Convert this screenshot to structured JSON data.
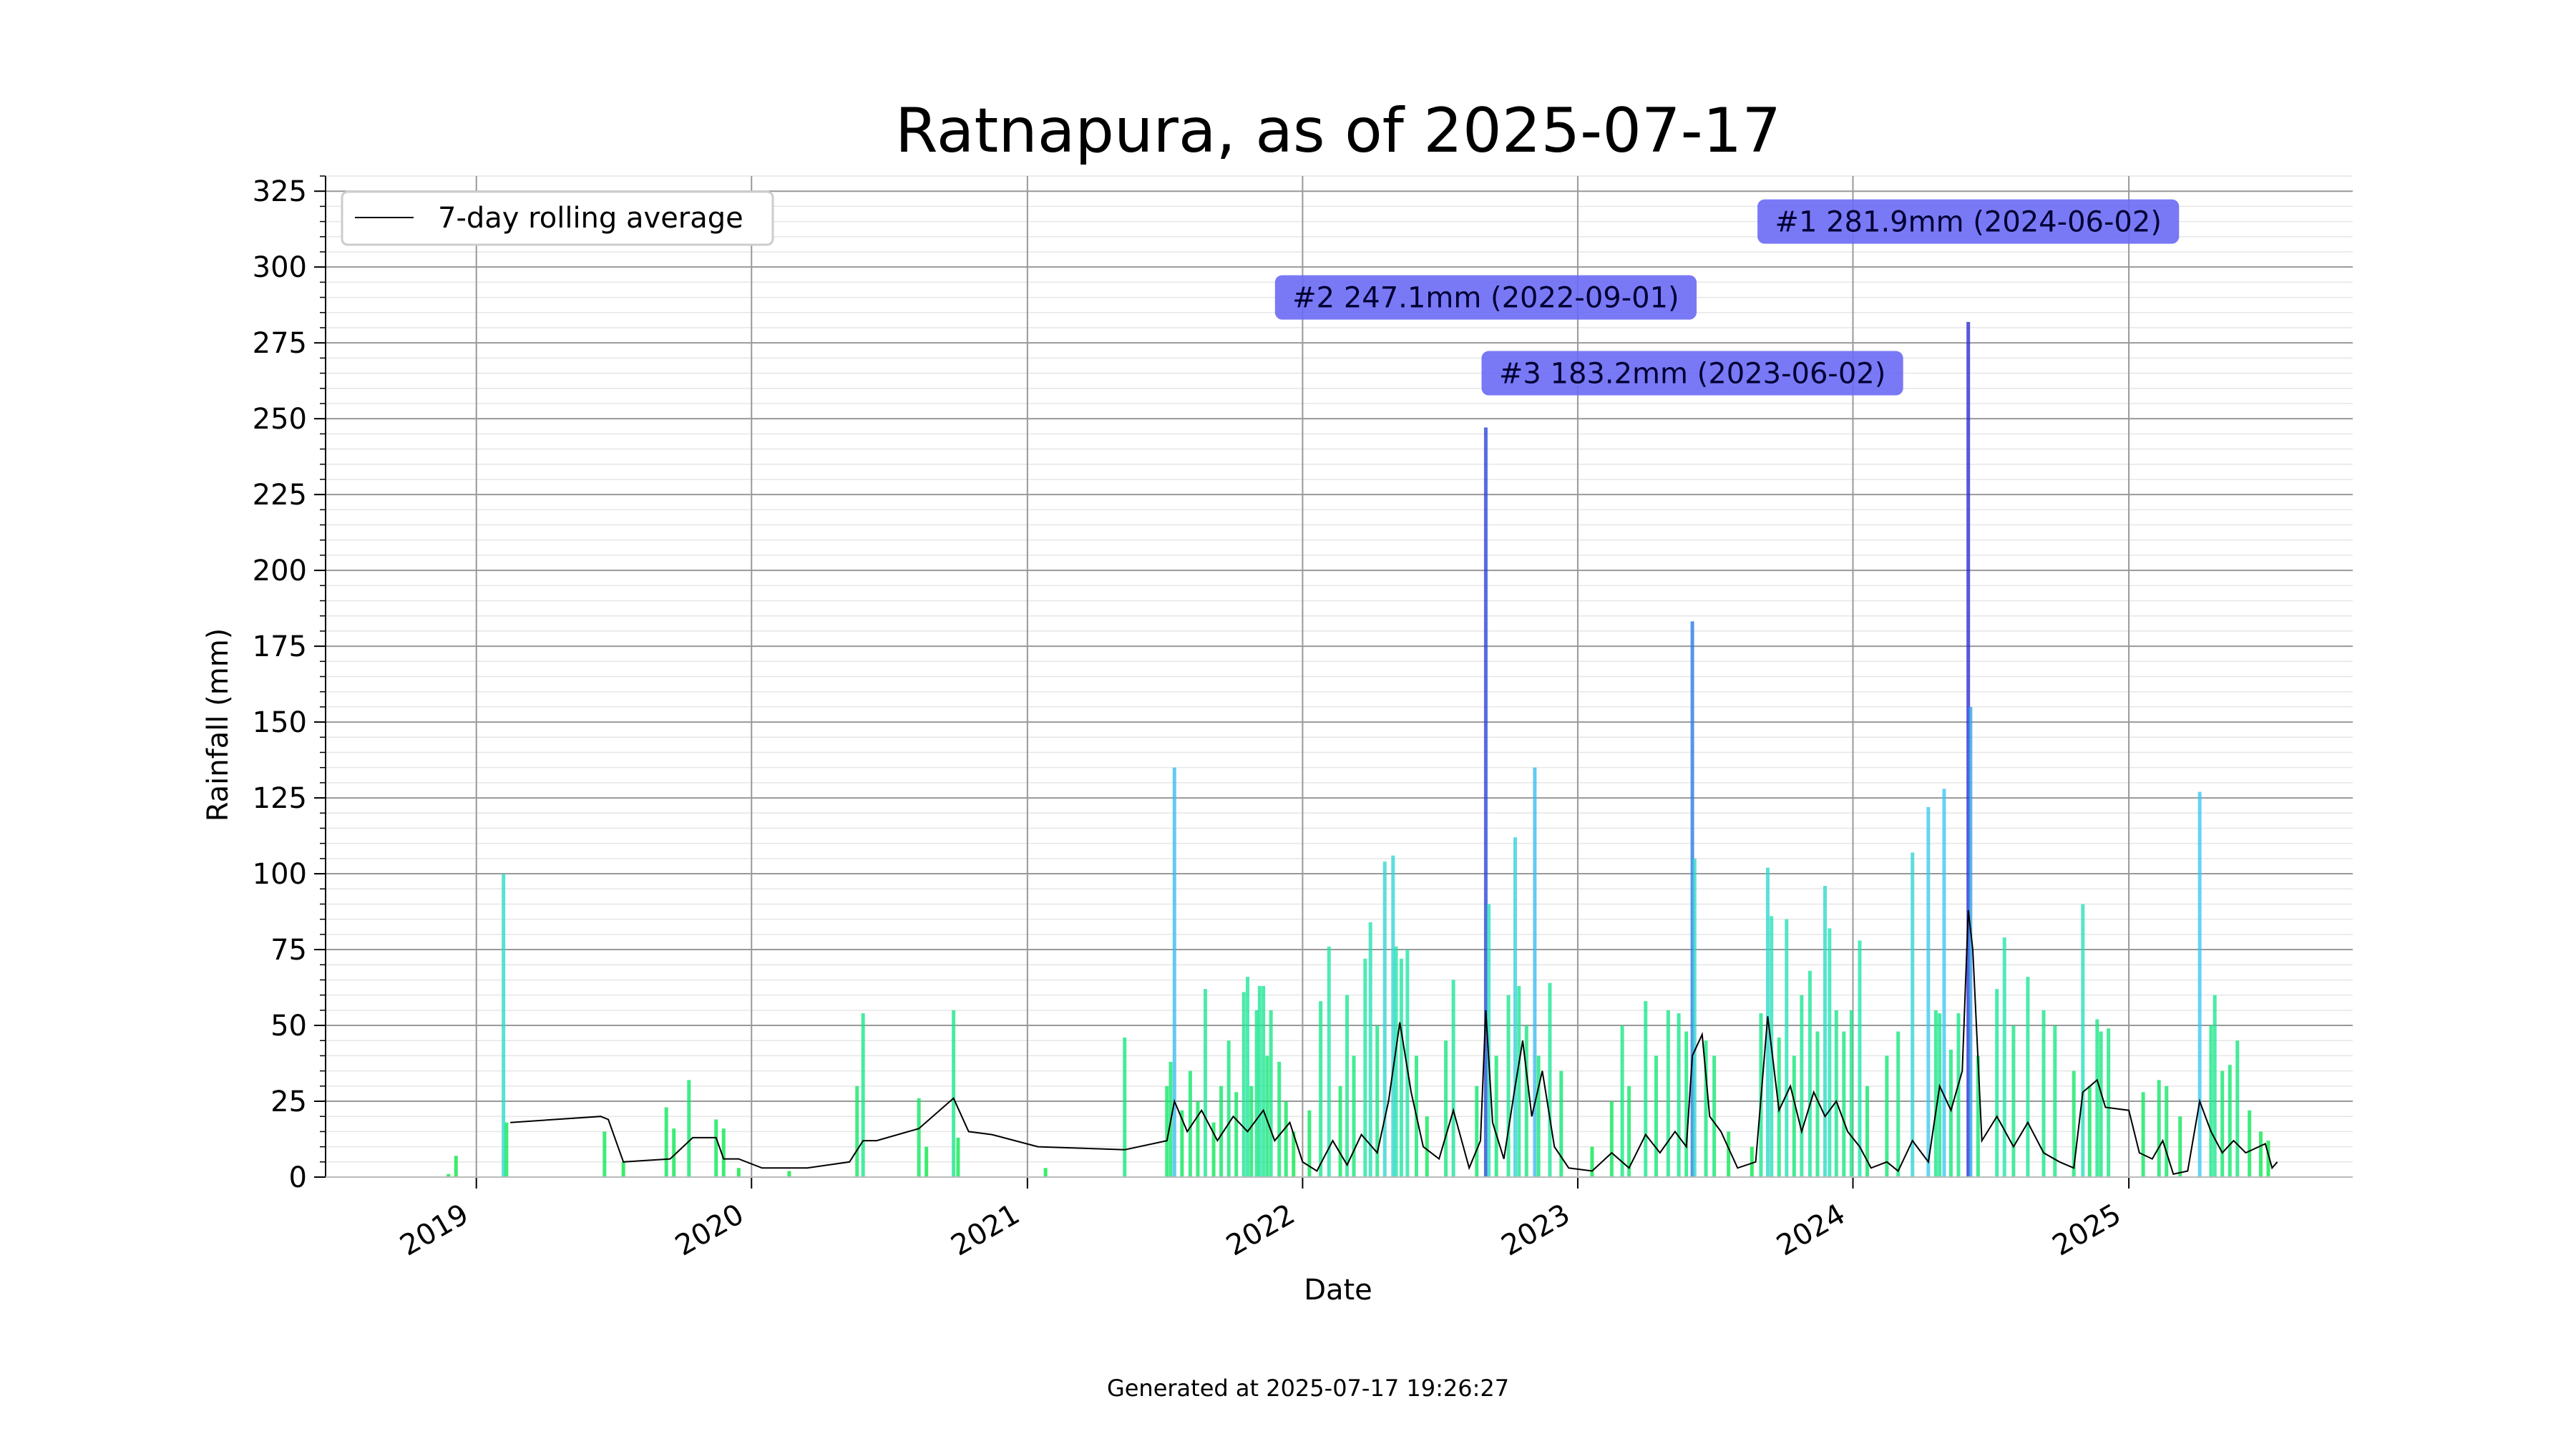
{
  "footer": {
    "generated": "Generated at 2025-07-17 19:26:27"
  },
  "chart_data": {
    "type": "bar",
    "title": "Ratnapura, as of 2025-07-17",
    "xlabel": "Date",
    "ylabel": "Rainfall (mm)",
    "xlim": [
      "2018-06-15",
      "2025-10-25"
    ],
    "ylim": [
      0,
      330
    ],
    "y_ticks": [
      0,
      25,
      50,
      75,
      100,
      125,
      150,
      175,
      200,
      225,
      250,
      275,
      300,
      325
    ],
    "x_ticks": [
      {
        "label": "2019",
        "date": "2019-01-01"
      },
      {
        "label": "2020",
        "date": "2020-01-01"
      },
      {
        "label": "2021",
        "date": "2021-01-01"
      },
      {
        "label": "2022",
        "date": "2022-01-01"
      },
      {
        "label": "2023",
        "date": "2023-01-01"
      },
      {
        "label": "2024",
        "date": "2024-01-01"
      },
      {
        "label": "2025",
        "date": "2025-01-01"
      }
    ],
    "grid": true,
    "legend": {
      "placement": "upper-left",
      "entries": [
        "7-day rolling average"
      ]
    },
    "colors": {
      "low": "#00e838",
      "high": "#0000cc",
      "rolling": "#000000",
      "annotation_box": "#6a6af5"
    },
    "series": [
      {
        "name": "Daily rainfall",
        "points": [
          [
            "2018-11-25",
            1
          ],
          [
            "2018-12-05",
            7
          ],
          [
            "2019-02-06",
            100
          ],
          [
            "2019-02-10",
            18
          ],
          [
            "2019-06-20",
            15
          ],
          [
            "2019-07-15",
            5
          ],
          [
            "2019-09-10",
            23
          ],
          [
            "2019-09-20",
            16
          ],
          [
            "2019-10-10",
            32
          ],
          [
            "2019-11-15",
            19
          ],
          [
            "2019-11-25",
            16
          ],
          [
            "2019-12-15",
            3
          ],
          [
            "2020-02-20",
            2
          ],
          [
            "2020-05-20",
            30
          ],
          [
            "2020-05-28",
            54
          ],
          [
            "2020-08-10",
            26
          ],
          [
            "2020-08-20",
            10
          ],
          [
            "2020-09-25",
            55
          ],
          [
            "2020-10-01",
            13
          ],
          [
            "2021-01-25",
            3
          ],
          [
            "2021-05-10",
            46
          ],
          [
            "2021-07-05",
            30
          ],
          [
            "2021-07-10",
            38
          ],
          [
            "2021-07-15",
            135
          ],
          [
            "2021-07-25",
            22
          ],
          [
            "2021-08-05",
            35
          ],
          [
            "2021-08-15",
            25
          ],
          [
            "2021-08-25",
            62
          ],
          [
            "2021-09-05",
            18
          ],
          [
            "2021-09-15",
            30
          ],
          [
            "2021-09-25",
            45
          ],
          [
            "2021-10-05",
            28
          ],
          [
            "2021-10-15",
            61
          ],
          [
            "2021-10-20",
            66
          ],
          [
            "2021-10-25",
            30
          ],
          [
            "2021-11-01",
            55
          ],
          [
            "2021-11-05",
            63
          ],
          [
            "2021-11-10",
            63
          ],
          [
            "2021-11-15",
            40
          ],
          [
            "2021-11-20",
            55
          ],
          [
            "2021-12-01",
            38
          ],
          [
            "2021-12-10",
            25
          ],
          [
            "2021-12-20",
            15
          ],
          [
            "2022-01-10",
            22
          ],
          [
            "2022-01-25",
            58
          ],
          [
            "2022-02-05",
            76
          ],
          [
            "2022-02-20",
            30
          ],
          [
            "2022-03-01",
            60
          ],
          [
            "2022-03-10",
            40
          ],
          [
            "2022-03-25",
            72
          ],
          [
            "2022-04-01",
            84
          ],
          [
            "2022-04-10",
            50
          ],
          [
            "2022-04-20",
            104
          ],
          [
            "2022-05-01",
            106
          ],
          [
            "2022-05-05",
            76
          ],
          [
            "2022-05-12",
            72
          ],
          [
            "2022-05-20",
            75
          ],
          [
            "2022-06-01",
            40
          ],
          [
            "2022-06-15",
            20
          ],
          [
            "2022-07-10",
            45
          ],
          [
            "2022-07-20",
            65
          ],
          [
            "2022-08-20",
            30
          ],
          [
            "2022-09-01",
            247.1
          ],
          [
            "2022-09-05",
            90
          ],
          [
            "2022-09-15",
            40
          ],
          [
            "2022-10-01",
            60
          ],
          [
            "2022-10-10",
            112
          ],
          [
            "2022-10-15",
            63
          ],
          [
            "2022-10-25",
            50
          ],
          [
            "2022-11-05",
            135
          ],
          [
            "2022-11-10",
            40
          ],
          [
            "2022-11-25",
            64
          ],
          [
            "2022-12-10",
            35
          ],
          [
            "2023-01-20",
            10
          ],
          [
            "2023-02-15",
            25
          ],
          [
            "2023-03-01",
            50
          ],
          [
            "2023-03-10",
            30
          ],
          [
            "2023-04-01",
            58
          ],
          [
            "2023-04-15",
            40
          ],
          [
            "2023-05-01",
            55
          ],
          [
            "2023-05-15",
            54
          ],
          [
            "2023-05-25",
            48
          ],
          [
            "2023-06-02",
            183.2
          ],
          [
            "2023-06-05",
            105
          ],
          [
            "2023-06-20",
            45
          ],
          [
            "2023-07-01",
            40
          ],
          [
            "2023-07-20",
            15
          ],
          [
            "2023-08-20",
            10
          ],
          [
            "2023-09-01",
            54
          ],
          [
            "2023-09-10",
            102
          ],
          [
            "2023-09-15",
            86
          ],
          [
            "2023-09-25",
            46
          ],
          [
            "2023-10-05",
            85
          ],
          [
            "2023-10-15",
            40
          ],
          [
            "2023-10-25",
            60
          ],
          [
            "2023-11-05",
            68
          ],
          [
            "2023-11-15",
            48
          ],
          [
            "2023-11-25",
            96
          ],
          [
            "2023-12-01",
            82
          ],
          [
            "2023-12-10",
            55
          ],
          [
            "2023-12-20",
            48
          ],
          [
            "2023-12-30",
            55
          ],
          [
            "2024-01-10",
            78
          ],
          [
            "2024-01-20",
            30
          ],
          [
            "2024-02-15",
            40
          ],
          [
            "2024-03-01",
            48
          ],
          [
            "2024-03-20",
            107
          ],
          [
            "2024-04-10",
            122
          ],
          [
            "2024-04-20",
            55
          ],
          [
            "2024-04-25",
            54
          ],
          [
            "2024-05-01",
            128
          ],
          [
            "2024-05-10",
            42
          ],
          [
            "2024-05-20",
            54
          ],
          [
            "2024-06-02",
            281.9
          ],
          [
            "2024-06-05",
            155
          ],
          [
            "2024-06-15",
            40
          ],
          [
            "2024-07-10",
            62
          ],
          [
            "2024-07-20",
            79
          ],
          [
            "2024-08-01",
            50
          ],
          [
            "2024-08-20",
            66
          ],
          [
            "2024-09-10",
            55
          ],
          [
            "2024-09-25",
            50
          ],
          [
            "2024-10-20",
            35
          ],
          [
            "2024-11-01",
            90
          ],
          [
            "2024-11-10",
            30
          ],
          [
            "2024-11-20",
            52
          ],
          [
            "2024-11-25",
            48
          ],
          [
            "2024-12-05",
            49
          ],
          [
            "2025-01-20",
            28
          ],
          [
            "2025-02-10",
            32
          ],
          [
            "2025-02-20",
            30
          ],
          [
            "2025-03-10",
            20
          ],
          [
            "2025-04-05",
            127
          ],
          [
            "2025-04-20",
            50
          ],
          [
            "2025-04-25",
            60
          ],
          [
            "2025-05-05",
            35
          ],
          [
            "2025-05-15",
            37
          ],
          [
            "2025-05-25",
            45
          ],
          [
            "2025-06-10",
            22
          ],
          [
            "2025-06-25",
            15
          ],
          [
            "2025-07-05",
            12
          ]
        ]
      },
      {
        "name": "7-day rolling average",
        "points": [
          [
            "2019-02-15",
            18
          ],
          [
            "2019-06-15",
            20
          ],
          [
            "2019-06-25",
            19
          ],
          [
            "2019-07-15",
            5
          ],
          [
            "2019-09-15",
            6
          ],
          [
            "2019-10-15",
            13
          ],
          [
            "2019-11-15",
            13
          ],
          [
            "2019-11-25",
            6
          ],
          [
            "2019-12-15",
            6
          ],
          [
            "2020-01-15",
            3
          ],
          [
            "2020-03-15",
            3
          ],
          [
            "2020-05-10",
            5
          ],
          [
            "2020-05-28",
            12
          ],
          [
            "2020-06-15",
            12
          ],
          [
            "2020-08-10",
            16
          ],
          [
            "2020-09-25",
            26
          ],
          [
            "2020-10-15",
            15
          ],
          [
            "2020-11-15",
            14
          ],
          [
            "2021-01-15",
            10
          ],
          [
            "2021-05-10",
            9
          ],
          [
            "2021-07-05",
            12
          ],
          [
            "2021-07-15",
            25
          ],
          [
            "2021-08-01",
            15
          ],
          [
            "2021-08-20",
            22
          ],
          [
            "2021-09-10",
            12
          ],
          [
            "2021-10-01",
            20
          ],
          [
            "2021-10-20",
            15
          ],
          [
            "2021-11-10",
            22
          ],
          [
            "2021-11-25",
            12
          ],
          [
            "2021-12-15",
            18
          ],
          [
            "2022-01-01",
            5
          ],
          [
            "2022-01-20",
            2
          ],
          [
            "2022-02-10",
            12
          ],
          [
            "2022-03-01",
            4
          ],
          [
            "2022-03-20",
            14
          ],
          [
            "2022-04-10",
            8
          ],
          [
            "2022-04-25",
            25
          ],
          [
            "2022-05-10",
            51
          ],
          [
            "2022-05-25",
            28
          ],
          [
            "2022-06-10",
            10
          ],
          [
            "2022-07-01",
            6
          ],
          [
            "2022-07-20",
            22
          ],
          [
            "2022-08-10",
            3
          ],
          [
            "2022-08-25",
            12
          ],
          [
            "2022-09-01",
            55
          ],
          [
            "2022-09-10",
            18
          ],
          [
            "2022-09-25",
            6
          ],
          [
            "2022-10-10",
            30
          ],
          [
            "2022-10-20",
            45
          ],
          [
            "2022-11-01",
            20
          ],
          [
            "2022-11-15",
            35
          ],
          [
            "2022-12-01",
            10
          ],
          [
            "2022-12-20",
            3
          ],
          [
            "2023-01-20",
            2
          ],
          [
            "2023-02-15",
            8
          ],
          [
            "2023-03-10",
            3
          ],
          [
            "2023-04-01",
            14
          ],
          [
            "2023-04-20",
            8
          ],
          [
            "2023-05-10",
            15
          ],
          [
            "2023-05-25",
            10
          ],
          [
            "2023-06-02",
            40
          ],
          [
            "2023-06-15",
            47
          ],
          [
            "2023-06-25",
            20
          ],
          [
            "2023-07-10",
            15
          ],
          [
            "2023-08-01",
            3
          ],
          [
            "2023-08-25",
            5
          ],
          [
            "2023-09-10",
            53
          ],
          [
            "2023-09-25",
            22
          ],
          [
            "2023-10-10",
            30
          ],
          [
            "2023-10-25",
            15
          ],
          [
            "2023-11-10",
            28
          ],
          [
            "2023-11-25",
            20
          ],
          [
            "2023-12-10",
            25
          ],
          [
            "2023-12-25",
            15
          ],
          [
            "2024-01-10",
            10
          ],
          [
            "2024-01-25",
            3
          ],
          [
            "2024-02-15",
            5
          ],
          [
            "2024-03-01",
            2
          ],
          [
            "2024-03-20",
            12
          ],
          [
            "2024-04-10",
            5
          ],
          [
            "2024-04-25",
            30
          ],
          [
            "2024-05-10",
            22
          ],
          [
            "2024-05-25",
            35
          ],
          [
            "2024-06-02",
            88
          ],
          [
            "2024-06-08",
            75
          ],
          [
            "2024-06-20",
            12
          ],
          [
            "2024-07-10",
            20
          ],
          [
            "2024-08-01",
            10
          ],
          [
            "2024-08-20",
            18
          ],
          [
            "2024-09-10",
            8
          ],
          [
            "2024-10-01",
            5
          ],
          [
            "2024-10-20",
            3
          ],
          [
            "2024-11-01",
            28
          ],
          [
            "2024-11-20",
            32
          ],
          [
            "2024-12-01",
            23
          ],
          [
            "2025-01-01",
            22
          ],
          [
            "2025-01-15",
            8
          ],
          [
            "2025-02-01",
            6
          ],
          [
            "2025-02-15",
            12
          ],
          [
            "2025-03-01",
            1
          ],
          [
            "2025-03-20",
            2
          ],
          [
            "2025-04-05",
            25
          ],
          [
            "2025-04-20",
            15
          ],
          [
            "2025-05-05",
            8
          ],
          [
            "2025-05-20",
            12
          ],
          [
            "2025-06-05",
            8
          ],
          [
            "2025-07-01",
            11
          ],
          [
            "2025-07-10",
            3
          ],
          [
            "2025-07-17",
            5
          ]
        ]
      }
    ],
    "annotations": [
      {
        "text": "#1 281.9mm (2024-06-02)",
        "date": "2024-06-02",
        "value": 281.9,
        "text_value": 315
      },
      {
        "text": "#2 247.1mm (2022-09-01)",
        "date": "2022-09-01",
        "value": 247.1,
        "text_value": 290
      },
      {
        "text": "#3 183.2mm (2023-06-02)",
        "date": "2023-06-02",
        "value": 183.2,
        "text_value": 265
      }
    ]
  }
}
